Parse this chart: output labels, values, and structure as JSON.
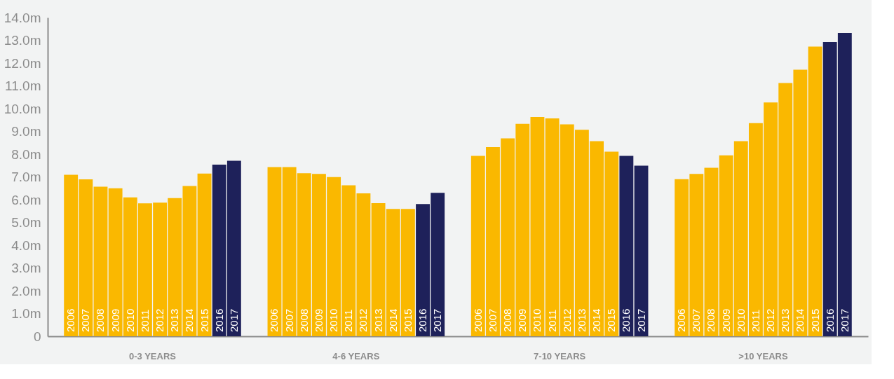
{
  "chart_data": {
    "type": "bar",
    "categories": [
      "0-3 YEARS",
      "4-6 YEARS",
      "7-10 YEARS",
      ">10 YEARS"
    ],
    "series": [
      {
        "name": "2006",
        "color": "#fab800",
        "values": [
          7.09,
          7.43,
          7.92,
          6.9
        ]
      },
      {
        "name": "2007",
        "color": "#fab800",
        "values": [
          6.89,
          7.43,
          8.31,
          7.13
        ]
      },
      {
        "name": "2008",
        "color": "#fab800",
        "values": [
          6.57,
          7.16,
          8.69,
          7.4
        ]
      },
      {
        "name": "2009",
        "color": "#fab800",
        "values": [
          6.5,
          7.13,
          9.33,
          7.95
        ]
      },
      {
        "name": "2010",
        "color": "#fab800",
        "values": [
          6.1,
          6.99,
          9.63,
          8.57
        ]
      },
      {
        "name": "2011",
        "color": "#fab800",
        "values": [
          5.84,
          6.63,
          9.57,
          9.36
        ]
      },
      {
        "name": "2012",
        "color": "#fab800",
        "values": [
          5.87,
          6.28,
          9.31,
          10.27
        ]
      },
      {
        "name": "2013",
        "color": "#fab800",
        "values": [
          6.07,
          5.85,
          9.07,
          11.12
        ]
      },
      {
        "name": "2014",
        "color": "#fab800",
        "values": [
          6.6,
          5.59,
          8.57,
          11.71
        ]
      },
      {
        "name": "2015",
        "color": "#fab800",
        "values": [
          7.15,
          5.59,
          8.11,
          12.72
        ]
      },
      {
        "name": "2016",
        "color": "#1e215a",
        "values": [
          7.54,
          5.81,
          7.92,
          12.92
        ]
      },
      {
        "name": "2017",
        "color": "#1e215a",
        "values": [
          7.71,
          6.3,
          7.49,
          13.32
        ]
      }
    ],
    "ylim": [
      0,
      14
    ],
    "yticks": [
      0,
      {
        "value": 1,
        "label": "1.0m"
      },
      {
        "value": 2,
        "label": "2.0m"
      },
      {
        "value": 3,
        "label": "3.0m"
      },
      {
        "value": 4,
        "label": "4.0m"
      },
      {
        "value": 5,
        "label": "5.0m"
      },
      {
        "value": 6,
        "label": "6.0m"
      },
      {
        "value": 7,
        "label": "7.0m"
      },
      {
        "value": 8,
        "label": "8.0m"
      },
      {
        "value": 9,
        "label": "9.0m"
      },
      {
        "value": 10,
        "label": "10.0m"
      },
      {
        "value": 11,
        "label": "11.0m"
      },
      {
        "value": 12,
        "label": "12.0m"
      },
      {
        "value": 13,
        "label": "13.0m"
      },
      {
        "value": 14,
        "label": "14.0m"
      }
    ],
    "grid": false,
    "legend": false
  }
}
